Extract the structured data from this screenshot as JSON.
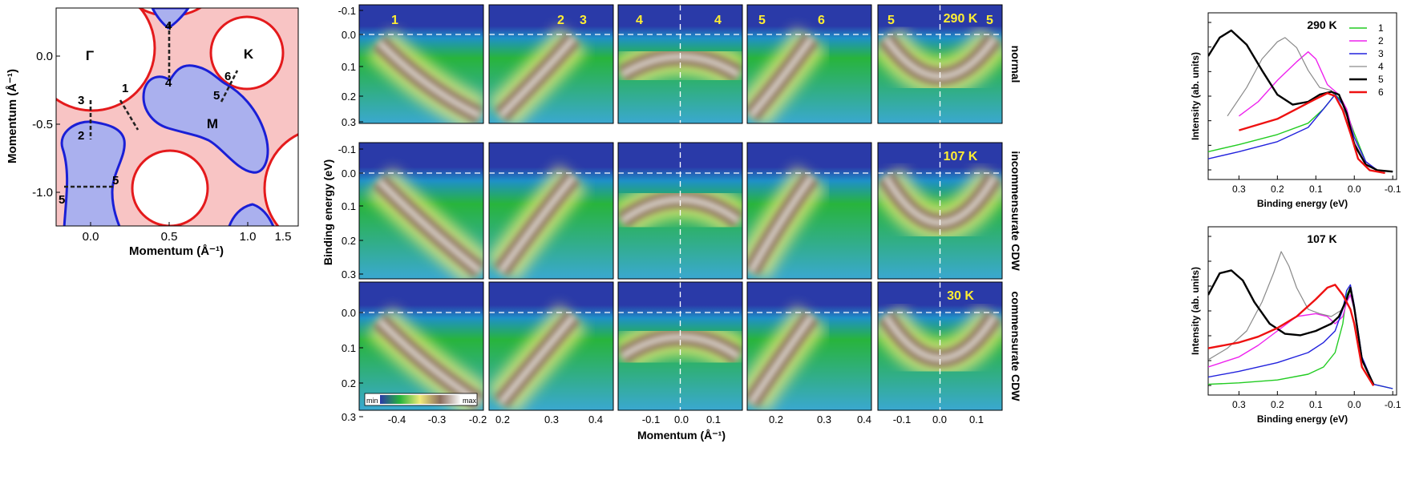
{
  "colors": {
    "fs_fill_red": "#f8c4c4",
    "fs_line_red": "#e41a1c",
    "fs_fill_blue": "#aab0ee",
    "fs_line_blue": "#1a1fd6",
    "arpes_low": "#2a3aa8",
    "arpes_mid": "#28b43c",
    "arpes_yellow": "#f0ea7a",
    "arpes_brown": "#8c6e5e",
    "arpes_high": "#f8f8f8",
    "label_yellow": "#ffee33",
    "edc_1": "#22cc22",
    "edc_2": "#ee22ee",
    "edc_3": "#2222dd",
    "edc_4": "#8a8a8a",
    "edc_5": "#000000",
    "edc_6": "#ee1111"
  },
  "fermi_surface": {
    "xlabel": "Momentum (Å⁻¹)",
    "ylabel": "Momentum (Å⁻¹)",
    "xticks": [
      "0.0",
      "0.5",
      "1.0",
      "1.5"
    ],
    "yticks": [
      "0.0",
      "-0.5",
      "-1.0"
    ],
    "point_labels": {
      "gamma": "Γ",
      "k": "K",
      "m": "M"
    },
    "cut_labels": [
      "1",
      "2",
      "3",
      "4",
      "4",
      "5",
      "5",
      "5",
      "6"
    ]
  },
  "arpes": {
    "ylabel": "Binding energy (eV)",
    "xlabel": "Momentum (Å⁻¹)",
    "yticks_top": [
      "-0.1",
      "0.0",
      "0.1",
      "0.2",
      "0.3"
    ],
    "yticks_mid": [
      "-0.1",
      "0.0",
      "0.1",
      "0.2",
      "0.3"
    ],
    "yticks_bot": [
      "0.0",
      "0.1",
      "0.2",
      "0.3"
    ],
    "rows": [
      {
        "phase": "normal",
        "temperature": "290 K"
      },
      {
        "phase": "incommensurate CDW",
        "temperature": "107 K"
      },
      {
        "phase": "commensurate CDW",
        "temperature": "30 K"
      }
    ],
    "panel_cut_labels": [
      [
        "1"
      ],
      [
        "2",
        "3"
      ],
      [
        "4",
        "4"
      ],
      [
        "5",
        "6"
      ],
      [
        "5",
        "5"
      ]
    ],
    "xticks": [
      [
        "-0.4",
        "-0.3",
        "-0.2"
      ],
      [
        "0.2",
        "0.3",
        "0.4"
      ],
      [
        "-0.1",
        "0.0",
        "0.1"
      ],
      [
        "0.2",
        "0.3",
        "0.4"
      ],
      [
        "-0.1",
        "0.0",
        "0.1"
      ]
    ],
    "colorbar": {
      "min": "min",
      "max": "max"
    }
  },
  "edc_top": {
    "title": "290 K",
    "xlabel": "Binding energy (eV)",
    "ylabel": "Intensity (ab. units)",
    "xticks": [
      "0.3",
      "0.2",
      "0.1",
      "0.0",
      "-0.1"
    ],
    "legend": [
      "1",
      "2",
      "3",
      "4",
      "5",
      "6"
    ]
  },
  "edc_bottom": {
    "title": "107 K",
    "xlabel": "Binding energy (eV)",
    "ylabel": "Intensity (ab. units)",
    "xticks": [
      "0.3",
      "0.2",
      "0.1",
      "0.0",
      "-0.1"
    ]
  },
  "chart_data": [
    {
      "type": "line",
      "title": "290 K",
      "xlabel": "Binding energy (eV)",
      "ylabel": "Intensity (ab. units)",
      "xlim": [
        0.38,
        -0.11
      ],
      "series": [
        {
          "name": "1",
          "x": [
            0.38,
            0.3,
            0.2,
            0.12,
            0.08,
            0.05,
            0.03,
            0.0,
            -0.03,
            -0.06,
            -0.1
          ],
          "y": [
            0.15,
            0.2,
            0.27,
            0.35,
            0.45,
            0.55,
            0.5,
            0.28,
            0.08,
            0.02,
            0.01
          ]
        },
        {
          "name": "2",
          "x": [
            0.3,
            0.25,
            0.2,
            0.15,
            0.12,
            0.1,
            0.07,
            0.04,
            0.02,
            0.0,
            -0.03,
            -0.06
          ],
          "y": [
            0.4,
            0.5,
            0.65,
            0.78,
            0.85,
            0.8,
            0.62,
            0.55,
            0.45,
            0.25,
            0.08,
            0.02
          ]
        },
        {
          "name": "3",
          "x": [
            0.38,
            0.3,
            0.2,
            0.12,
            0.08,
            0.05,
            0.03,
            0.0,
            -0.03,
            -0.06,
            -0.1
          ],
          "y": [
            0.1,
            0.15,
            0.22,
            0.32,
            0.45,
            0.55,
            0.48,
            0.25,
            0.08,
            0.02,
            0.01
          ]
        },
        {
          "name": "4",
          "x": [
            0.33,
            0.28,
            0.24,
            0.2,
            0.18,
            0.15,
            0.12,
            0.09,
            0.06,
            0.04,
            0.02,
            0.0,
            -0.03,
            -0.06
          ],
          "y": [
            0.4,
            0.6,
            0.8,
            0.92,
            0.95,
            0.88,
            0.72,
            0.6,
            0.58,
            0.5,
            0.4,
            0.22,
            0.06,
            0.02
          ]
        },
        {
          "name": "5",
          "x": [
            0.38,
            0.35,
            0.32,
            0.28,
            0.24,
            0.2,
            0.16,
            0.12,
            0.09,
            0.06,
            0.04,
            0.02,
            0.0,
            -0.03,
            -0.06,
            -0.1
          ],
          "y": [
            0.82,
            0.95,
            1.0,
            0.9,
            0.72,
            0.55,
            0.48,
            0.5,
            0.55,
            0.57,
            0.55,
            0.42,
            0.2,
            0.06,
            0.02,
            0.01
          ]
        },
        {
          "name": "6",
          "x": [
            0.3,
            0.25,
            0.2,
            0.15,
            0.1,
            0.07,
            0.05,
            0.03,
            0.01,
            -0.01,
            -0.04,
            -0.08
          ],
          "y": [
            0.3,
            0.34,
            0.38,
            0.45,
            0.52,
            0.56,
            0.54,
            0.44,
            0.28,
            0.1,
            0.02,
            0.0
          ]
        }
      ]
    },
    {
      "type": "line",
      "title": "107 K",
      "xlabel": "Binding energy (eV)",
      "ylabel": "Intensity (ab. units)",
      "xlim": [
        0.38,
        -0.11
      ],
      "series": [
        {
          "name": "1",
          "x": [
            0.38,
            0.3,
            0.2,
            0.12,
            0.08,
            0.05,
            0.03,
            0.02,
            0.01,
            0.0,
            -0.02,
            -0.05,
            -0.1
          ],
          "y": [
            0.03,
            0.04,
            0.06,
            0.1,
            0.15,
            0.25,
            0.45,
            0.65,
            0.7,
            0.55,
            0.2,
            0.03,
            0.0
          ]
        },
        {
          "name": "2",
          "x": [
            0.38,
            0.3,
            0.25,
            0.2,
            0.15,
            0.1,
            0.07,
            0.05,
            0.03,
            0.02,
            0.01,
            0.0,
            -0.02,
            -0.05
          ],
          "y": [
            0.15,
            0.22,
            0.3,
            0.4,
            0.5,
            0.52,
            0.5,
            0.45,
            0.5,
            0.6,
            0.65,
            0.55,
            0.2,
            0.03
          ]
        },
        {
          "name": "3",
          "x": [
            0.38,
            0.3,
            0.2,
            0.12,
            0.08,
            0.05,
            0.03,
            0.02,
            0.01,
            0.0,
            -0.02,
            -0.05,
            -0.1
          ],
          "y": [
            0.08,
            0.12,
            0.18,
            0.25,
            0.32,
            0.4,
            0.55,
            0.68,
            0.72,
            0.58,
            0.22,
            0.03,
            0.0
          ]
        },
        {
          "name": "4",
          "x": [
            0.38,
            0.33,
            0.28,
            0.24,
            0.21,
            0.19,
            0.17,
            0.15,
            0.12,
            0.09,
            0.06,
            0.03,
            0.01,
            0.0,
            -0.02,
            -0.05
          ],
          "y": [
            0.2,
            0.28,
            0.4,
            0.6,
            0.8,
            0.95,
            0.85,
            0.7,
            0.55,
            0.52,
            0.5,
            0.55,
            0.68,
            0.55,
            0.2,
            0.03
          ]
        },
        {
          "name": "5",
          "x": [
            0.38,
            0.35,
            0.32,
            0.29,
            0.26,
            0.22,
            0.18,
            0.14,
            0.1,
            0.06,
            0.04,
            0.02,
            0.01,
            0.0,
            -0.02,
            -0.05
          ],
          "y": [
            0.65,
            0.8,
            0.82,
            0.75,
            0.6,
            0.45,
            0.38,
            0.37,
            0.4,
            0.45,
            0.5,
            0.62,
            0.7,
            0.56,
            0.2,
            0.03
          ]
        },
        {
          "name": "6",
          "x": [
            0.38,
            0.3,
            0.25,
            0.2,
            0.15,
            0.1,
            0.07,
            0.05,
            0.03,
            0.01,
            0.0,
            -0.02,
            -0.05
          ],
          "y": [
            0.28,
            0.32,
            0.36,
            0.42,
            0.5,
            0.62,
            0.7,
            0.72,
            0.65,
            0.55,
            0.45,
            0.15,
            0.02
          ]
        }
      ]
    }
  ]
}
